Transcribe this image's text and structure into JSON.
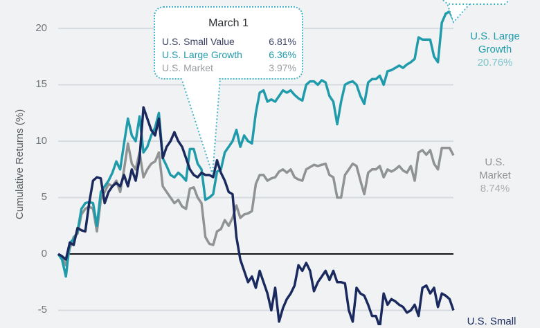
{
  "chart_data": {
    "type": "line",
    "title": "",
    "xlabel": "",
    "ylabel": "Cumulative Returns (%)",
    "ylim": [
      -6,
      22
    ],
    "y_ticks": [
      "20",
      "15",
      "10",
      "5",
      "0",
      "-5"
    ],
    "grid": true,
    "legend_position": "right-end-labels",
    "series": [
      {
        "name": "U.S. Large Growth",
        "color": "#1f9bab",
        "end_value": "20.76%",
        "values": [
          0,
          -0.5,
          -2.0,
          1.0,
          1.3,
          2.0,
          4.0,
          4.5,
          4.6,
          4.5,
          2.5,
          5.5,
          6.0,
          6.5,
          7.2,
          8.2,
          7.5,
          9.8,
          12.0,
          10.5,
          10.0,
          12.2,
          9.0,
          9.5,
          10.5,
          11.2,
          12.5,
          8.5,
          7.8,
          7.0,
          6.8,
          7.2,
          6.9,
          6.5,
          9.3,
          9.3,
          8.0,
          7.5,
          4.8,
          5.0,
          5.3,
          7.3,
          7.5,
          9.0,
          9.5,
          10.0,
          11.0,
          9.5,
          10.5,
          10.0,
          9.8,
          12.5,
          14.3,
          14.5,
          13.5,
          13.7,
          13.5,
          14.0,
          14.5,
          14.3,
          14.5,
          14.1,
          13.8,
          13.6,
          15.0,
          15.3,
          15.3,
          15.0,
          15.4,
          15.2,
          14.0,
          13.5,
          11.5,
          13.5,
          15.0,
          15.2,
          15.3,
          15.0,
          14.0,
          13.3,
          15.2,
          15.5,
          15.5,
          15.8,
          15.0,
          16.2,
          16.3,
          16.5,
          16.7,
          16.5,
          16.8,
          17.0,
          17.3,
          19.2,
          19.0,
          19.0,
          19.0,
          17.5,
          17.0,
          20.5,
          21.3,
          21.5,
          20.76
        ]
      },
      {
        "name": "U.S. Market",
        "color": "#8f9394",
        "end_value": "8.74%",
        "values": [
          0,
          -0.3,
          -1.0,
          0.5,
          1.5,
          1.8,
          3.5,
          4.0,
          4.2,
          4.0,
          2.0,
          4.8,
          5.5,
          6.2,
          6.0,
          6.5,
          5.5,
          7.5,
          9.8,
          8.0,
          7.5,
          9.0,
          6.8,
          7.5,
          8.0,
          8.2,
          9.0,
          6.0,
          5.5,
          5.0,
          4.5,
          4.8,
          4.2,
          4.0,
          5.8,
          5.9,
          5.0,
          4.5,
          1.5,
          0.9,
          0.8,
          2.0,
          2.2,
          3.0,
          2.5,
          3.2,
          4.3,
          3.2,
          3.5,
          3.6,
          3.8,
          6.2,
          7.0,
          7.0,
          6.5,
          6.7,
          6.8,
          7.3,
          7.5,
          7.2,
          7.5,
          6.8,
          6.6,
          6.5,
          7.5,
          7.7,
          7.9,
          7.8,
          7.9,
          8.0,
          7.0,
          6.8,
          5.0,
          5.0,
          7.0,
          7.5,
          8.0,
          7.8,
          6.5,
          5.3,
          7.2,
          7.5,
          7.5,
          7.8,
          6.8,
          7.5,
          7.3,
          7.5,
          7.8,
          7.4,
          7.2,
          7.8,
          6.5,
          9.0,
          9.2,
          8.8,
          9.2,
          8.0,
          7.5,
          9.4,
          9.4,
          9.4,
          8.74
        ]
      },
      {
        "name": "U.S. Small Value",
        "color": "#1a2a5e",
        "end_value": "",
        "values": [
          0,
          -0.2,
          -0.5,
          1.0,
          0.8,
          2.3,
          2.1,
          2.0,
          4.5,
          6.5,
          6.8,
          6.7,
          4.5,
          5.5,
          6.0,
          6.3,
          6.0,
          7.0,
          6.0,
          7.5,
          6.5,
          8.5,
          13.0,
          12.0,
          11.0,
          10.5,
          12.0,
          8.5,
          9.5,
          10.0,
          10.8,
          10.0,
          9.5,
          8.5,
          7.5,
          7.0,
          6.8,
          7.2,
          7.0,
          7.0,
          6.81,
          8.3,
          7.2,
          6.5,
          5.5,
          5.3,
          1.5,
          -0.5,
          -1.5,
          -2.5,
          -2.0,
          -3.0,
          -1.5,
          -2.5,
          -3.5,
          -5.0,
          -3.0,
          -6.0,
          -4.8,
          -4.0,
          -3.5,
          -2.8,
          -1.0,
          -1.5,
          -0.8,
          -1.5,
          -3.3,
          -2.5,
          -2.0,
          -1.5,
          -2.3,
          -1.5,
          -2.5,
          -2.5,
          -2.6,
          -5.0,
          -6.0,
          -3.0,
          -3.5,
          -3.7,
          -4.5,
          -5.5,
          -5.5,
          -6.5,
          -3.5,
          -4.5,
          -4.0,
          -4.2,
          -4.5,
          -4.7,
          -5.2,
          -5.0,
          -4.5,
          -5.5,
          -3.0,
          -2.8,
          -3.5,
          -3.0,
          -4.7,
          -3.5,
          -3.7,
          -4.0,
          -5.0
        ]
      }
    ],
    "annotations": [
      {
        "title": "March 1",
        "rows": [
          {
            "label": "U.S. Small Value",
            "value": "6.81%",
            "color": "#3a4163"
          },
          {
            "label": "U.S. Large Growth",
            "value": "6.36%",
            "color": "#1f9bab"
          },
          {
            "label": "U.S. Market",
            "value": "3.97%",
            "color": "#9a9ea1"
          }
        ]
      }
    ]
  },
  "axis": {
    "ylabel": "Cumulative Returns (%)",
    "ticks": [
      {
        "label": "20",
        "value": 20
      },
      {
        "label": "15",
        "value": 15
      },
      {
        "label": "10",
        "value": 10
      },
      {
        "label": "5",
        "value": 5
      },
      {
        "label": "0",
        "value": 0
      },
      {
        "label": "-5",
        "value": -5
      }
    ]
  },
  "end_labels": {
    "large_growth": {
      "line1": "U.S. Large",
      "line2": "Growth",
      "value": "20.76%"
    },
    "market": {
      "line1": "U.S.",
      "line2": "Market",
      "value": "8.74%"
    },
    "small_value": {
      "line1": "U.S. Small"
    }
  },
  "callout": {
    "title": "March 1",
    "rows": [
      {
        "label": "U.S. Small Value",
        "value": "6.81%"
      },
      {
        "label": "U.S. Large Growth",
        "value": "6.36%"
      },
      {
        "label": "U.S. Market",
        "value": "3.97%"
      }
    ]
  },
  "colors": {
    "large_growth": "#1f9bab",
    "market": "#8f9394",
    "small_value": "#1a2a5e",
    "callout_border": "#43b4c8",
    "grid": "#d6dbe0",
    "zero_line": "#111111"
  }
}
